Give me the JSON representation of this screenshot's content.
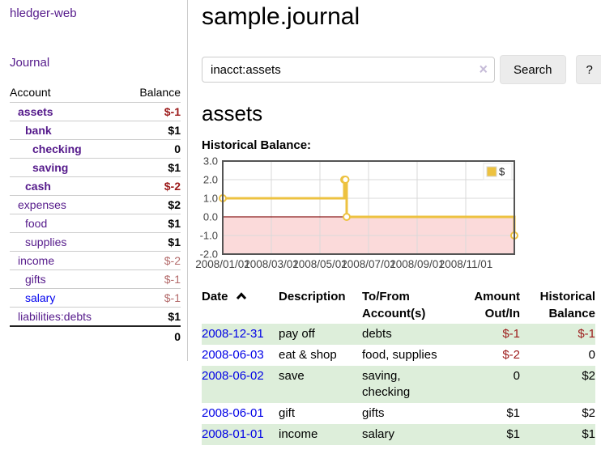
{
  "app": {
    "title": "hledger-web"
  },
  "sidebar": {
    "nav_journal": "Journal",
    "accounts": {
      "headers": [
        "Account",
        "Balance"
      ],
      "rows": [
        {
          "account": "assets",
          "balance": "$-1",
          "indent": 0,
          "emph": true,
          "balance_style": "neg-strong",
          "link_style": "visited"
        },
        {
          "account": "bank",
          "balance": "$1",
          "indent": 1,
          "emph": true,
          "balance_style": "pos",
          "link_style": "visited"
        },
        {
          "account": "checking",
          "balance": "0",
          "indent": 2,
          "emph": true,
          "balance_style": "pos",
          "link_style": "visited"
        },
        {
          "account": "saving",
          "balance": "$1",
          "indent": 2,
          "emph": true,
          "balance_style": "pos",
          "link_style": "visited"
        },
        {
          "account": "cash",
          "balance": "$-2",
          "indent": 1,
          "emph": true,
          "balance_style": "neg-strong",
          "link_style": "visited"
        },
        {
          "account": "expenses",
          "balance": "$2",
          "indent": 0,
          "emph": false,
          "balance_style": "pos",
          "link_style": "visited"
        },
        {
          "account": "food",
          "balance": "$1",
          "indent": 1,
          "emph": false,
          "balance_style": "pos",
          "link_style": "visited"
        },
        {
          "account": "supplies",
          "balance": "$1",
          "indent": 1,
          "emph": false,
          "balance_style": "pos",
          "link_style": "visited"
        },
        {
          "account": "income",
          "balance": "$-2",
          "indent": 0,
          "emph": false,
          "balance_style": "neg-soft",
          "link_style": "visited"
        },
        {
          "account": "gifts",
          "balance": "$-1",
          "indent": 1,
          "emph": false,
          "balance_style": "neg-soft",
          "link_style": "visited"
        },
        {
          "account": "salary",
          "balance": "$-1",
          "indent": 1,
          "emph": false,
          "balance_style": "neg-soft",
          "link_style": "unvisited"
        },
        {
          "account": "liabilities:debts",
          "balance": "$1",
          "indent": 0,
          "emph": false,
          "balance_style": "pos",
          "link_style": "visited"
        }
      ],
      "total": "0"
    }
  },
  "main": {
    "title": "sample.journal",
    "search": {
      "value": "inacct:assets",
      "clear_icon": "×",
      "button_label": "Search",
      "help_label": "?"
    },
    "heading": "assets",
    "register": {
      "headers": [
        {
          "lines": [
            "Date"
          ],
          "sort": "asc",
          "align": "left"
        },
        {
          "lines": [
            "Description"
          ],
          "align": "left"
        },
        {
          "lines": [
            "To/From",
            "Account(s)"
          ],
          "align": "left"
        },
        {
          "lines": [
            "Amount",
            "Out/In"
          ],
          "align": "right"
        },
        {
          "lines": [
            "Historical",
            "Balance"
          ],
          "align": "right"
        }
      ],
      "rows": [
        {
          "date": "2008-12-31",
          "description": "pay off",
          "accounts": "debts",
          "amount": "$-1",
          "amount_neg": true,
          "balance": "$-1",
          "balance_neg": true
        },
        {
          "date": "2008-06-03",
          "description": "eat & shop",
          "accounts": "food, supplies",
          "amount": "$-2",
          "amount_neg": true,
          "balance": "0",
          "balance_neg": false
        },
        {
          "date": "2008-06-02",
          "description": "save",
          "accounts": "saving, checking",
          "accounts_wrap": true,
          "amount": "0",
          "amount_neg": false,
          "balance": "$2",
          "balance_neg": false
        },
        {
          "date": "2008-06-01",
          "description": "gift",
          "accounts": "gifts",
          "amount": "$1",
          "amount_neg": false,
          "balance": "$2",
          "balance_neg": false
        },
        {
          "date": "2008-01-01",
          "description": "income",
          "accounts": "salary",
          "amount": "$1",
          "amount_neg": false,
          "balance": "$1",
          "balance_neg": false
        }
      ]
    }
  },
  "chart_data": {
    "type": "line",
    "title": "Historical Balance:",
    "x_range": [
      0,
      12
    ],
    "y_range": [
      -2,
      3
    ],
    "y_ticks": [
      3,
      2,
      1,
      0,
      -1,
      -2
    ],
    "x_ticks": [
      {
        "x": 0,
        "label": "2008/01/01"
      },
      {
        "x": 2,
        "label": "2008/03/01"
      },
      {
        "x": 4,
        "label": "2008/05/01"
      },
      {
        "x": 6,
        "label": "2008/07/01"
      },
      {
        "x": 8,
        "label": "2008/09/01"
      },
      {
        "x": 10,
        "label": "2008/11/01"
      }
    ],
    "series": [
      {
        "name": "$",
        "color": "#edc240",
        "step": true,
        "points": [
          {
            "date": "2008-01-01",
            "x": 0,
            "y": 1
          },
          {
            "date": "2008-06-01",
            "x": 5.0,
            "y": 2
          },
          {
            "date": "2008-06-02",
            "x": 5.05,
            "y": 2
          },
          {
            "date": "2008-06-03",
            "x": 5.1,
            "y": 0
          },
          {
            "date": "2008-12-31",
            "x": 12,
            "y": -1
          }
        ]
      }
    ],
    "legend": {
      "label": "$",
      "color": "#edc240",
      "position": "top-right"
    },
    "negative_fill": "#fbdada",
    "zero_line_color": "#8c1717",
    "grid": true
  }
}
